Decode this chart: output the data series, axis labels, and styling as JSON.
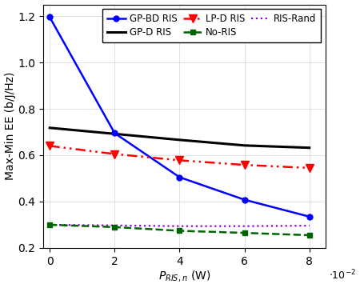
{
  "x_values": [
    0,
    0.02,
    0.04,
    0.06,
    0.08
  ],
  "x_ticks": [
    0,
    0.02,
    0.04,
    0.06,
    0.08
  ],
  "x_tick_labels": [
    "0",
    "2",
    "4",
    "6",
    "8"
  ],
  "xlabel": "$P_{RIS,n}$ (W)",
  "ylabel": "Max-Min EE (b/J/Hz)",
  "ylim": [
    0.2,
    1.25
  ],
  "yticks": [
    0.2,
    0.4,
    0.6,
    0.8,
    1.0,
    1.2
  ],
  "gp_bd_ris": [
    1.195,
    0.695,
    0.505,
    0.408,
    0.335
  ],
  "gp_d_ris": [
    0.718,
    0.692,
    0.666,
    0.642,
    0.632
  ],
  "lp_d_ris": [
    0.64,
    0.605,
    0.578,
    0.558,
    0.545
  ],
  "no_ris": [
    0.3,
    0.29,
    0.274,
    0.265,
    0.255
  ],
  "ris_rand": [
    0.3,
    0.297,
    0.294,
    0.294,
    0.296
  ],
  "color_gpbd": "#0000ff",
  "color_gpd": "#000000",
  "color_lpd": "#ff0000",
  "color_noris": "#006400",
  "color_rand": "#9400d3",
  "legend_entries": [
    "GP-BD RIS",
    "GP-D RIS",
    "LP-D RIS",
    "No-RIS",
    "RIS-Rand"
  ]
}
